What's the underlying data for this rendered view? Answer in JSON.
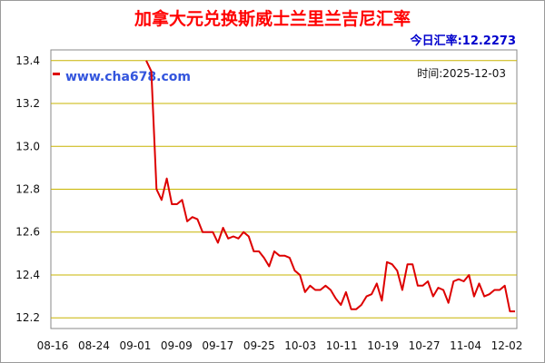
{
  "header": {
    "title": "加拿大元兑换斯威士兰里兰吉尼汇率",
    "today_rate": "今日汇率:12.2273"
  },
  "chart_data": {
    "type": "line",
    "title": "加拿大元兑换斯威士兰里兰吉尼汇率",
    "watermark": "www.cha678.com",
    "date_label": "时间:2025-12-03",
    "ylim": [
      12.15,
      13.45
    ],
    "yticks": [
      "13.4",
      "13.2",
      "13.0",
      "12.8",
      "12.6",
      "12.4",
      "12.2"
    ],
    "xticks": [
      "08-16",
      "08-24",
      "09-01",
      "09-09",
      "09-17",
      "09-25",
      "10-03",
      "10-11",
      "10-19",
      "10-27",
      "11-04",
      "12-02"
    ],
    "grid": true,
    "line_color": "#dd0000",
    "grid_color": "#c8b400",
    "first_value": 13.4,
    "values": [
      13.4,
      13.35,
      12.8,
      12.75,
      12.85,
      12.73,
      12.73,
      12.75,
      12.65,
      12.67,
      12.66,
      12.6,
      12.6,
      12.6,
      12.55,
      12.62,
      12.57,
      12.58,
      12.57,
      12.6,
      12.58,
      12.51,
      12.51,
      12.48,
      12.44,
      12.51,
      12.49,
      12.49,
      12.48,
      12.42,
      12.4,
      12.32,
      12.35,
      12.33,
      12.33,
      12.35,
      12.33,
      12.29,
      12.26,
      12.32,
      12.24,
      12.24,
      12.26,
      12.3,
      12.31,
      12.36,
      12.28,
      12.46,
      12.45,
      12.42,
      12.33,
      12.45,
      12.45,
      12.35,
      12.35,
      12.37,
      12.3,
      12.34,
      12.33,
      12.27,
      12.37,
      12.38,
      12.37,
      12.4,
      12.3,
      12.36,
      12.3,
      12.31,
      12.33,
      12.33,
      12.35,
      12.23,
      12.23
    ]
  }
}
